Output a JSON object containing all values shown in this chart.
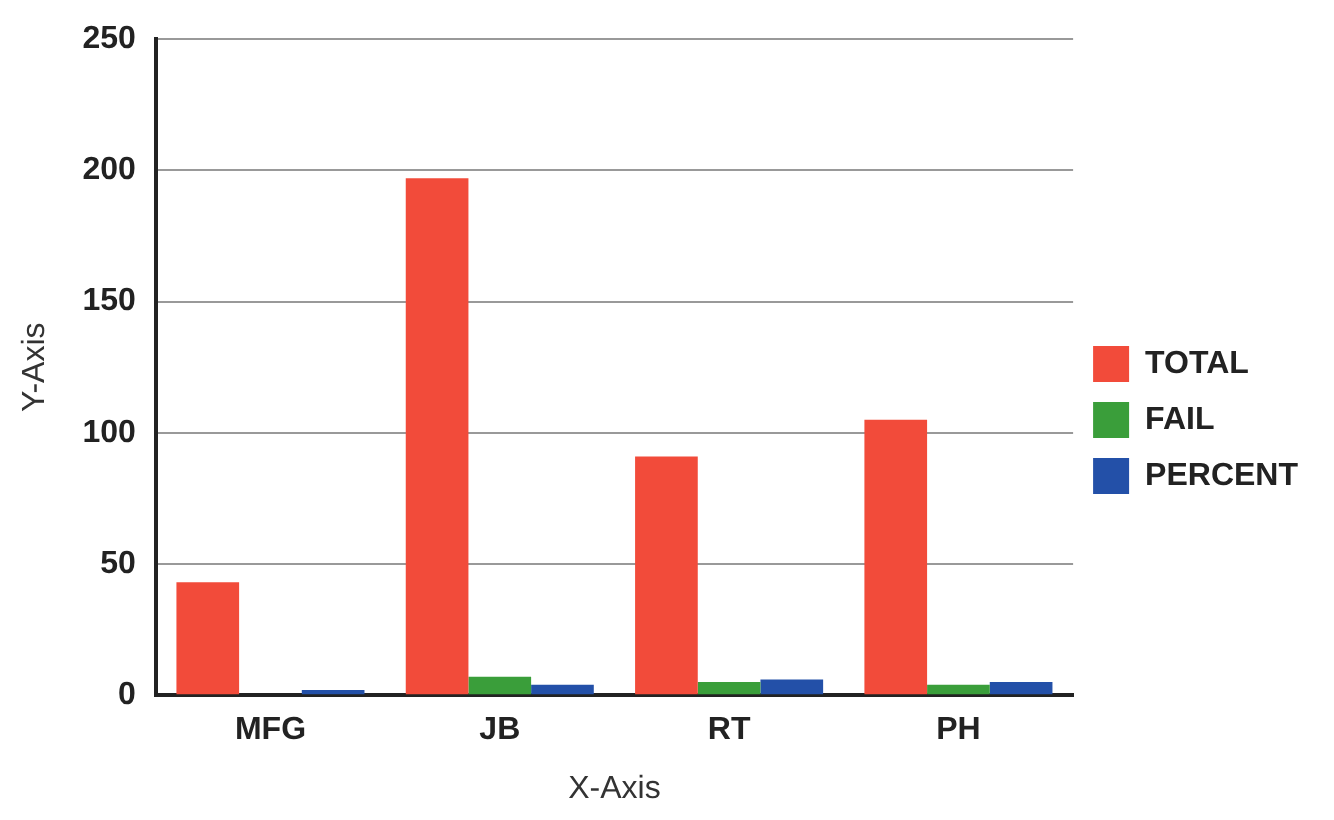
{
  "chart_data": {
    "type": "bar",
    "xlabel": "X-Axis",
    "ylabel": "Y-Axis",
    "categories": [
      "MFG",
      "JB",
      "RT",
      "PH"
    ],
    "series": [
      {
        "name": "TOTAL",
        "color": "#f24b3a",
        "values": [
          43,
          197,
          91,
          105
        ]
      },
      {
        "name": "FAIL",
        "color": "#3a9e3a",
        "values": [
          0,
          7,
          5,
          4
        ]
      },
      {
        "name": "PERCENT",
        "color": "#2350a8",
        "values": [
          2,
          4,
          6,
          5
        ]
      }
    ],
    "ylim": [
      0,
      250
    ],
    "yticks": [
      0,
      50,
      100,
      150,
      200,
      250
    ],
    "grid": "y",
    "legend": "right"
  }
}
